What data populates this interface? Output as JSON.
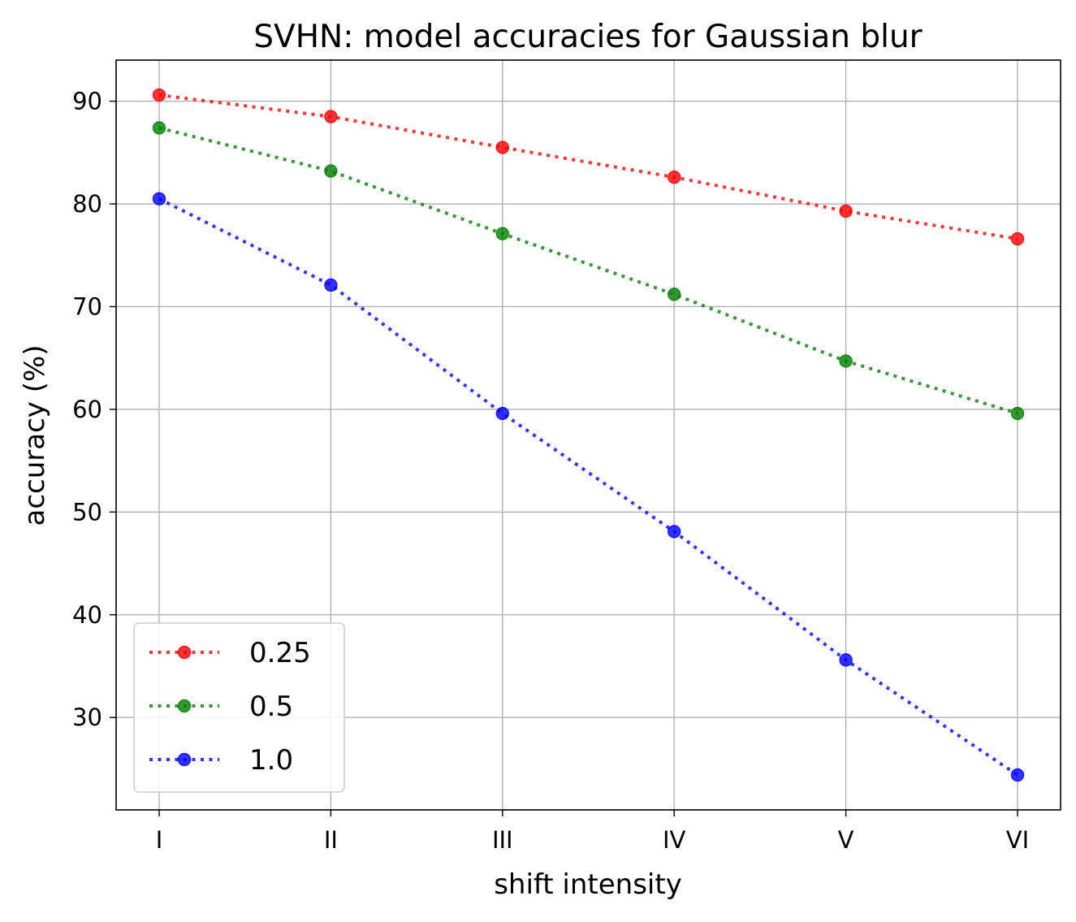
{
  "chart_data": {
    "type": "line",
    "title": "SVHN: model accuracies for Gaussian blur",
    "xlabel": "shift intensity",
    "ylabel": "accuracy (%)",
    "categories": [
      "I",
      "II",
      "III",
      "IV",
      "V",
      "VI"
    ],
    "yticks": [
      30,
      40,
      50,
      60,
      70,
      80,
      90
    ],
    "ylim": [
      21,
      94
    ],
    "grid": true,
    "legend_position": "lower-left",
    "series": [
      {
        "name": "0.25",
        "color": "#ff0000",
        "values": [
          90.6,
          88.5,
          85.5,
          82.6,
          79.3,
          76.6
        ]
      },
      {
        "name": "0.5",
        "color": "#008000",
        "values": [
          87.4,
          83.2,
          77.1,
          71.2,
          64.7,
          59.6
        ]
      },
      {
        "name": "1.0",
        "color": "#0000ff",
        "values": [
          80.5,
          72.1,
          59.6,
          48.1,
          35.6,
          24.4
        ]
      }
    ]
  }
}
